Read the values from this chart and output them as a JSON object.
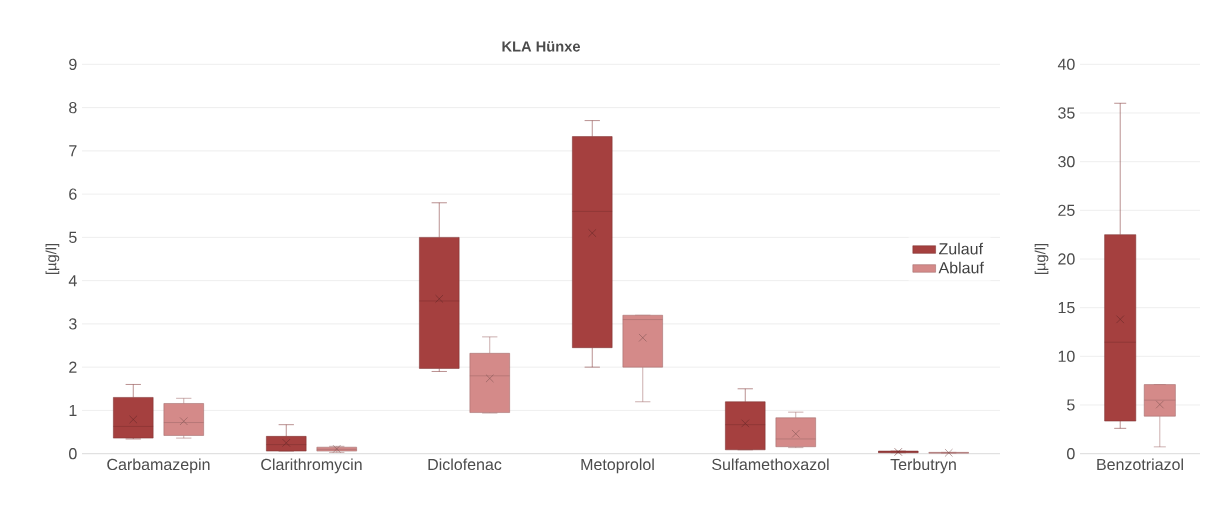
{
  "chart_data": [
    {
      "type": "box",
      "title": "KLA Hünxe",
      "ylabel": "[µg/l]",
      "categories": [
        "Carbamazepin",
        "Clarithromycin",
        "Diclofenac",
        "Metoprolol",
        "Sulfamethoxazol",
        "Terbutryn"
      ],
      "ylim": [
        0,
        9
      ],
      "yticks": [
        0,
        1,
        2,
        3,
        4,
        5,
        6,
        7,
        8,
        9
      ],
      "grid": "y",
      "legend": "right",
      "series": [
        {
          "name": "Zulauf",
          "color": "#a5403f",
          "boxes": [
            {
              "low": 0.34,
              "q1": 0.36,
              "median": 0.63,
              "q3": 1.3,
              "high": 1.6,
              "mean": 0.79
            },
            {
              "low": 0.06,
              "q1": 0.06,
              "median": 0.21,
              "q3": 0.4,
              "high": 0.67,
              "mean": 0.25
            },
            {
              "low": 1.9,
              "q1": 1.97,
              "median": 3.53,
              "q3": 5.0,
              "high": 5.8,
              "mean": 3.58
            },
            {
              "low": 2.0,
              "q1": 2.45,
              "median": 5.6,
              "q3": 7.33,
              "high": 7.7,
              "mean": 5.1
            },
            {
              "low": 0.09,
              "q1": 0.09,
              "median": 0.67,
              "q3": 1.2,
              "high": 1.5,
              "mean": 0.7
            },
            {
              "low": 0.02,
              "q1": 0.02,
              "median": 0.04,
              "q3": 0.06,
              "high": 0.06,
              "mean": 0.04
            }
          ]
        },
        {
          "name": "Ablauf",
          "color": "#d48a89",
          "boxes": [
            {
              "low": 0.36,
              "q1": 0.42,
              "median": 0.72,
              "q3": 1.16,
              "high": 1.28,
              "mean": 0.75
            },
            {
              "low": 0.03,
              "q1": 0.06,
              "median": 0.1,
              "q3": 0.15,
              "high": 0.17,
              "mean": 0.11
            },
            {
              "low": 0.94,
              "q1": 0.95,
              "median": 1.8,
              "q3": 2.32,
              "high": 2.7,
              "mean": 1.74
            },
            {
              "low": 1.2,
              "q1": 2.0,
              "median": 3.1,
              "q3": 3.2,
              "high": 3.2,
              "mean": 2.68
            },
            {
              "low": 0.14,
              "q1": 0.16,
              "median": 0.34,
              "q3": 0.83,
              "high": 0.96,
              "mean": 0.46
            },
            {
              "low": 0.01,
              "q1": 0.01,
              "median": 0.02,
              "q3": 0.03,
              "high": 0.03,
              "mean": 0.02
            }
          ]
        }
      ]
    },
    {
      "type": "box",
      "ylabel": "[µg/l]",
      "categories": [
        "Benzotriazol"
      ],
      "ylim": [
        0,
        40
      ],
      "yticks": [
        0,
        5,
        10,
        15,
        20,
        25,
        30,
        35,
        40
      ],
      "grid": "y",
      "series": [
        {
          "color": "#a5403f",
          "boxes": [
            {
              "low": 2.6,
              "q1": 3.35,
              "median": 11.45,
              "q3": 22.5,
              "high": 36.0,
              "mean": 13.8
            }
          ]
        },
        {
          "color": "#d48a89",
          "boxes": [
            {
              "low": 0.7,
              "q1": 3.85,
              "median": 5.5,
              "q3": 7.1,
              "high": 7.1,
              "mean": 5.05
            }
          ]
        }
      ]
    }
  ]
}
